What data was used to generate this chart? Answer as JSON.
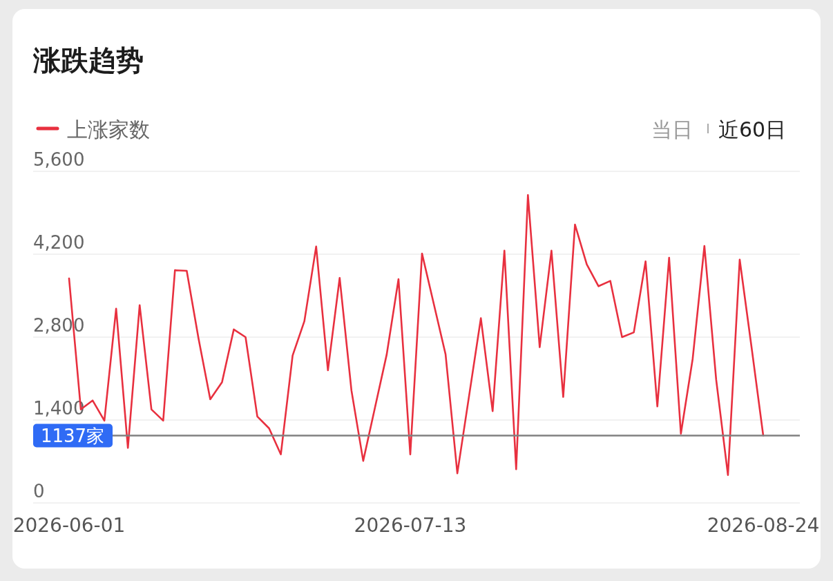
{
  "chart_data": {
    "type": "line",
    "title": "涨跌趋势",
    "categories": [
      "2026-06-01",
      null,
      null,
      null,
      null,
      null,
      null,
      null,
      null,
      null,
      null,
      null,
      null,
      null,
      null,
      null,
      null,
      null,
      null,
      null,
      null,
      null,
      null,
      null,
      null,
      null,
      null,
      null,
      null,
      "2026-07-13",
      null,
      null,
      null,
      null,
      null,
      null,
      null,
      null,
      null,
      null,
      null,
      null,
      null,
      null,
      null,
      null,
      null,
      null,
      null,
      null,
      null,
      null,
      null,
      null,
      null,
      null,
      null,
      null,
      null,
      "2026-08-24"
    ],
    "series": [
      {
        "name": "上涨家数",
        "color": "#e8303f",
        "values": [
          3790,
          1580,
          1730,
          1390,
          3280,
          930,
          3340,
          1580,
          1390,
          3930,
          3920,
          2780,
          1750,
          2040,
          2930,
          2800,
          1460,
          1260,
          820,
          2490,
          3070,
          4330,
          2240,
          3800,
          1900,
          710,
          1610,
          2510,
          3780,
          820,
          4210,
          3360,
          2510,
          500,
          1810,
          3120,
          1550,
          4260,
          570,
          5200,
          2630,
          4260,
          1790,
          4700,
          4030,
          3660,
          3750,
          2800,
          2880,
          4080,
          1630,
          4140,
          1170,
          2430,
          4340,
          2080,
          470,
          4110,
          2640,
          1137
        ]
      }
    ],
    "ylim": [
      0,
      5600
    ],
    "yticks": [
      0,
      {
        "value": 1400,
        "label": "1,400"
      },
      {
        "value": 2800,
        "label": "2,800"
      },
      {
        "value": 4200,
        "label": "4,200"
      },
      {
        "value": 5600,
        "label": "5,600"
      }
    ],
    "grid": "y",
    "legend": "top left",
    "marker": "none",
    "line_style": "solid",
    "ref_lines": [
      {
        "axis": "y",
        "value": 1137,
        "label": "1137家",
        "color": "#808080"
      }
    ],
    "annotations": [
      "当日",
      "近60日"
    ]
  }
}
